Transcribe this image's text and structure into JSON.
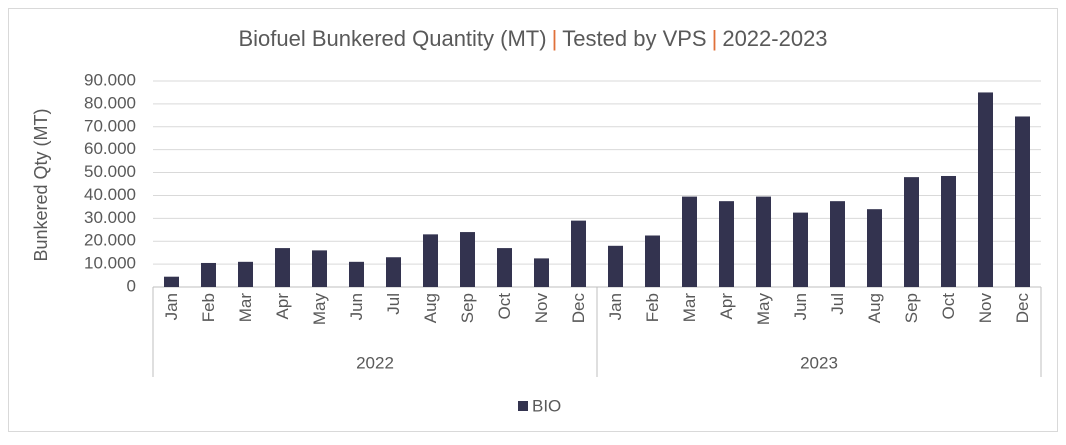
{
  "chart_data": {
    "type": "bar",
    "title_parts": [
      "Biofuel Bunkered Quantity (MT)",
      "|",
      "Tested by VPS",
      "|",
      "2022-2023"
    ],
    "title_separator_color": "#e0703a",
    "y_label": "Bunkered Qty (MT)",
    "category_groups": [
      {
        "label": "2022",
        "categories": [
          "Jan",
          "Feb",
          "Mar",
          "Apr",
          "May",
          "Jun",
          "Jul",
          "Aug",
          "Sep",
          "Oct",
          "Nov",
          "Dec"
        ]
      },
      {
        "label": "2023",
        "categories": [
          "Jan",
          "Feb",
          "Mar",
          "Apr",
          "May",
          "Jun",
          "Jul",
          "Aug",
          "Sep",
          "Oct",
          "Nov",
          "Dec"
        ]
      }
    ],
    "series": [
      {
        "name": "BIO",
        "color": "#33334f",
        "values": [
          4500,
          10500,
          11000,
          17000,
          16000,
          11000,
          13000,
          23000,
          24000,
          17000,
          12500,
          29000,
          18000,
          22500,
          39500,
          37500,
          39500,
          32500,
          37500,
          34000,
          48000,
          48500,
          85000,
          74500
        ]
      }
    ],
    "ylim": [
      0,
      90000
    ],
    "yticks": [
      0,
      {
        "value": 10000,
        "label": "10.000"
      },
      {
        "value": 20000,
        "label": "20.000"
      },
      {
        "value": 30000,
        "label": "30.000"
      },
      {
        "value": 40000,
        "label": "40.000"
      },
      {
        "value": 50000,
        "label": "50.000"
      },
      {
        "value": 60000,
        "label": "60.000"
      },
      {
        "value": 70000,
        "label": "70.000"
      },
      {
        "value": 80000,
        "label": "80.000"
      },
      {
        "value": 90000,
        "label": "90.000"
      }
    ],
    "grid": true,
    "legend": "bottom"
  }
}
